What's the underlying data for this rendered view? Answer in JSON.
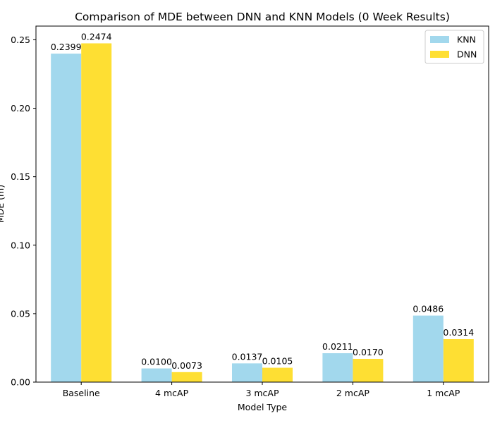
{
  "chart_data": {
    "type": "bar",
    "title": "Comparison of MDE between DNN and KNN Models (0 Week Results)",
    "xlabel": "Model Type",
    "ylabel": "MDE (m)",
    "categories": [
      "Baseline",
      "4 mcAP",
      "3 mcAP",
      "2 mcAP",
      "1 mcAP"
    ],
    "series": [
      {
        "name": "KNN",
        "color": "#a2d8ed",
        "values": [
          0.2399,
          0.01,
          0.0137,
          0.0211,
          0.0486
        ],
        "labels": [
          "0.2399",
          "0.0100",
          "0.0137",
          "0.0211",
          "0.0486"
        ]
      },
      {
        "name": "DNN",
        "color": "#fedf33",
        "values": [
          0.2474,
          0.0073,
          0.0105,
          0.017,
          0.0314
        ],
        "labels": [
          "0.2474",
          "0.0073",
          "0.0105",
          "0.0170",
          "0.0314"
        ]
      }
    ],
    "ylim": [
      0,
      0.26
    ],
    "yticks": [
      "0.00",
      "0.05",
      "0.10",
      "0.15",
      "0.20",
      "0.25"
    ],
    "ytick_values": [
      0,
      0.05,
      0.1,
      0.15,
      0.2,
      0.25
    ],
    "grid": false,
    "legend_position": "top-right"
  }
}
